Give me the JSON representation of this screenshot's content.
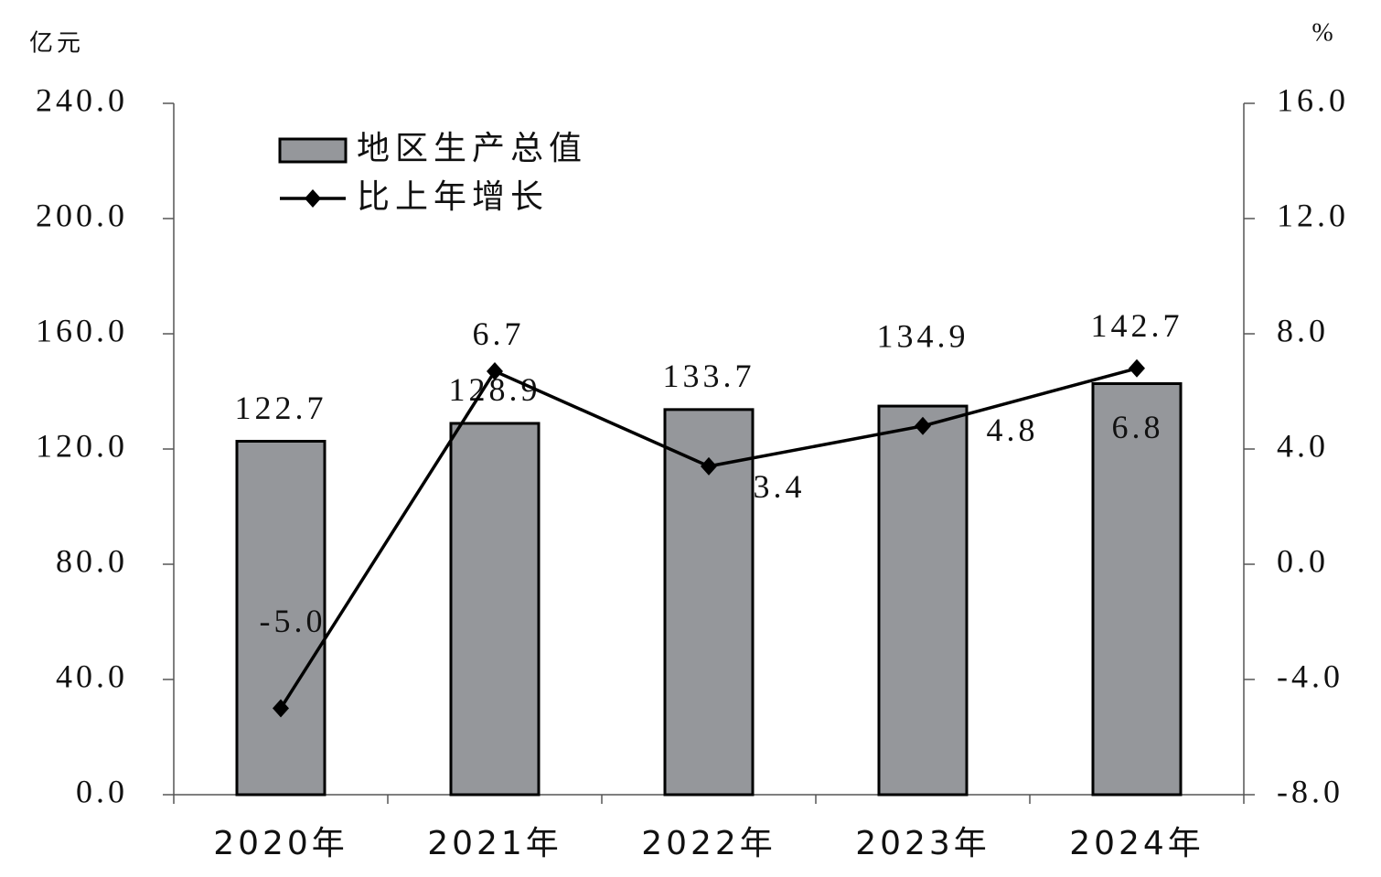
{
  "chart_data": {
    "type": "bar-line",
    "y_label": "亿元",
    "y2_label": "%",
    "categories": [
      "2020年",
      "2021年",
      "2022年",
      "2023年",
      "2024年"
    ],
    "series": [
      {
        "name": "地区生产总值",
        "type": "bar",
        "color": "#95979b",
        "values": [
          122.7,
          128.9,
          133.7,
          134.9,
          142.7
        ]
      },
      {
        "name": "比上年增长",
        "type": "line",
        "axis": "y2",
        "color": "#000000",
        "values": [
          -5.0,
          6.7,
          3.4,
          4.8,
          6.8
        ],
        "value_labels": [
          "-5.0",
          "6.7",
          "3.4",
          "4.8",
          "6.8"
        ]
      }
    ],
    "ylim": [
      0,
      240
    ],
    "yticks": [
      {
        "value": 0,
        "label": "0.0"
      },
      {
        "value": 40,
        "label": "40.0"
      },
      {
        "value": 80,
        "label": "80.0"
      },
      {
        "value": 120,
        "label": "120.0"
      },
      {
        "value": 160,
        "label": "160.0"
      },
      {
        "value": 200,
        "label": "200.0"
      },
      {
        "value": 240,
        "label": "240.0"
      }
    ],
    "y2lim": [
      -8,
      16
    ],
    "y2ticks": [
      {
        "value": -8,
        "label": "-8.0"
      },
      {
        "value": -4,
        "label": "-4.0"
      },
      {
        "value": 0,
        "label": "0.0"
      },
      {
        "value": 4,
        "label": "4.0"
      },
      {
        "value": 8,
        "label": "8.0"
      },
      {
        "value": 12,
        "label": "12.0"
      },
      {
        "value": 16,
        "label": "16.0"
      }
    ],
    "grid": false,
    "legend": "upper left"
  }
}
